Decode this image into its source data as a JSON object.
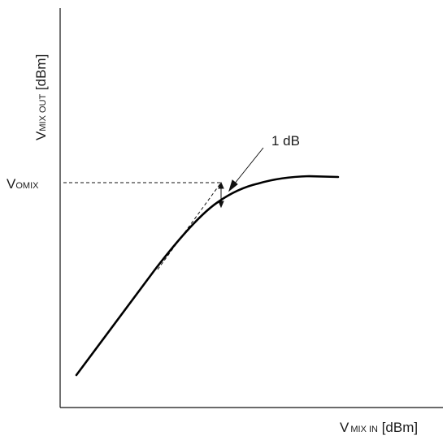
{
  "diagram": {
    "y_axis_label": {
      "main": "V",
      "sub": "MIX OUT",
      "unit": " [dBm]"
    },
    "x_axis_label": {
      "main": "V",
      "sub": "MIX IN",
      "unit": " [dBm]"
    },
    "level_label": {
      "main": "V",
      "sub": "OMIX"
    },
    "annotation": "1 dB"
  }
}
